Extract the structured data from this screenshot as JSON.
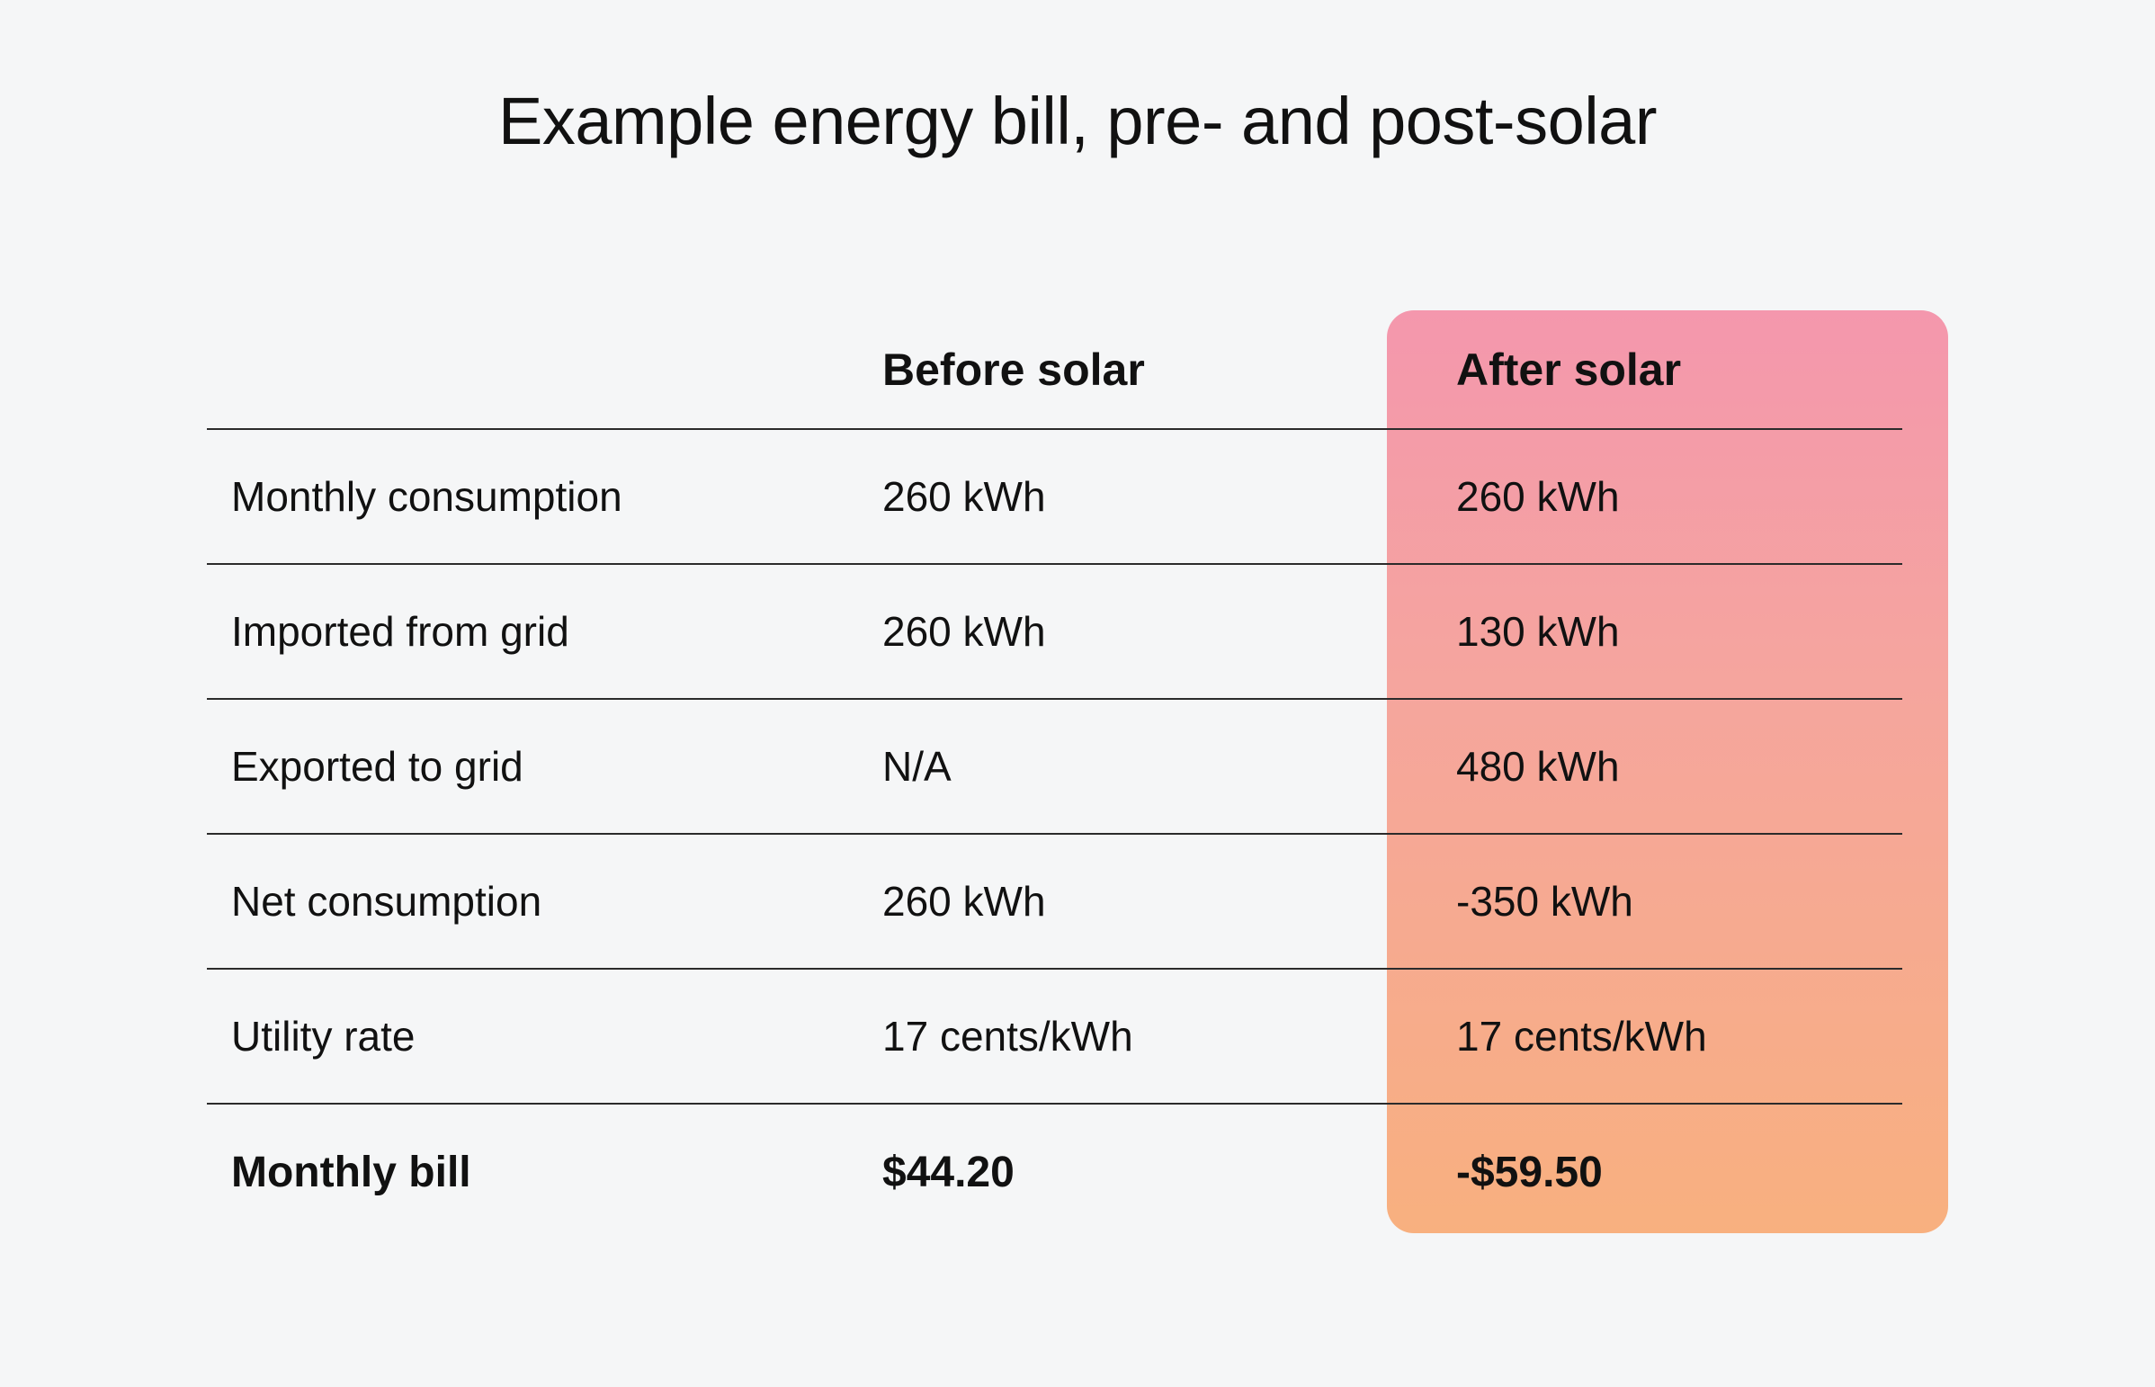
{
  "title": "Example energy bill, pre- and post-solar",
  "colors": {
    "background": "#f5f6f7",
    "highlight_top": "#f497ad",
    "highlight_bottom": "#f8b07f",
    "rule": "#2b2b2b"
  },
  "table": {
    "columns": [
      "",
      "Before solar",
      "After solar"
    ],
    "rows": [
      {
        "label": "Monthly consumption",
        "before": "260 kWh",
        "after": "260 kWh"
      },
      {
        "label": "Imported from grid",
        "before": "260 kWh",
        "after": "130 kWh"
      },
      {
        "label": "Exported to grid",
        "before": "N/A",
        "after": "480 kWh"
      },
      {
        "label": "Net consumption",
        "before": "260 kWh",
        "after": "-350 kWh"
      },
      {
        "label": "Utility rate",
        "before": "17 cents/kWh",
        "after": "17 cents/kWh"
      },
      {
        "label": "Monthly bill",
        "before": "$44.20",
        "after": "-$59.50"
      }
    ]
  }
}
